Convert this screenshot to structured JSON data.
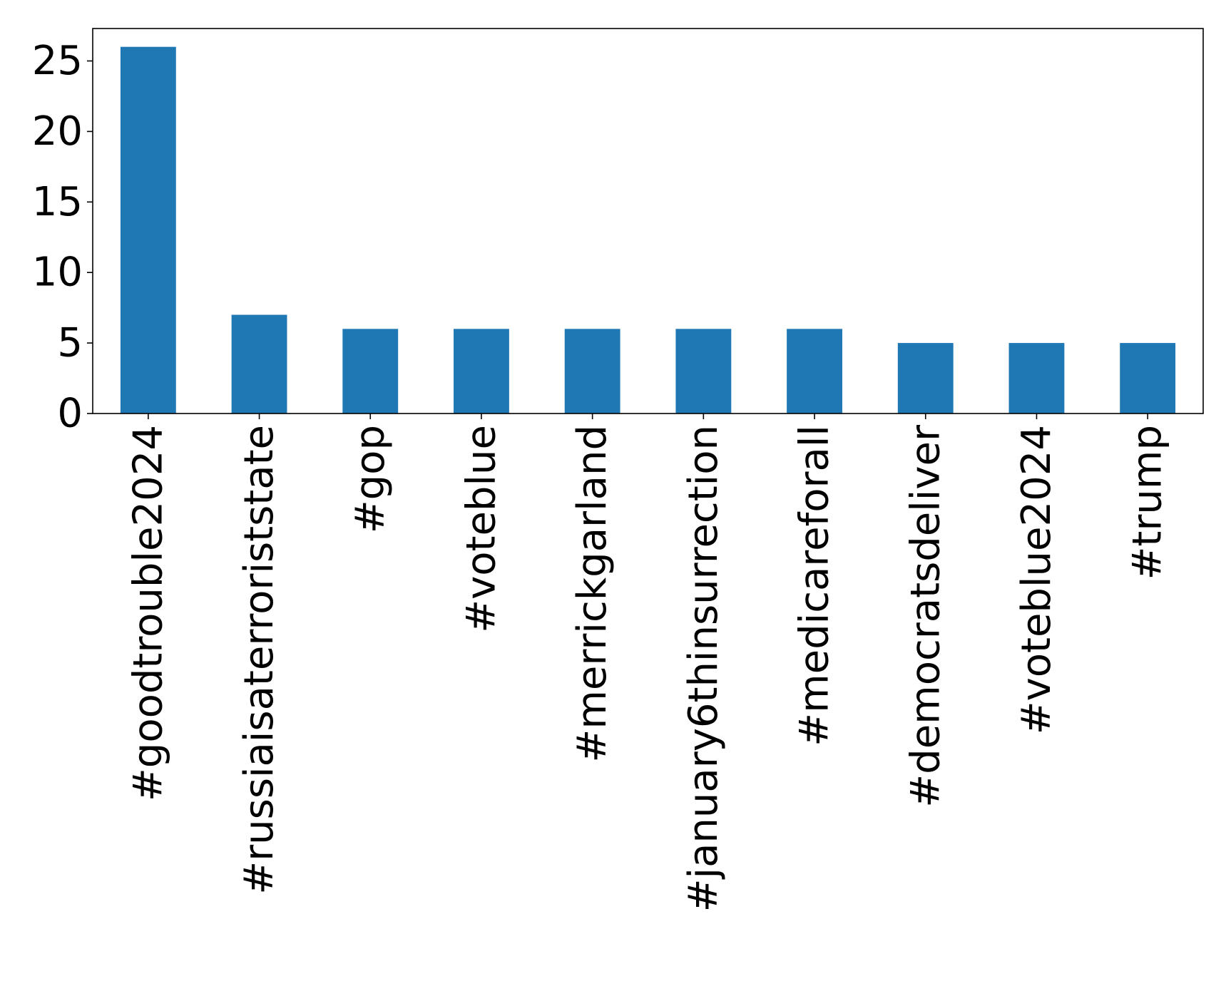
{
  "chart_data": {
    "type": "bar",
    "title": "",
    "xlabel": "",
    "ylabel": "",
    "categories": [
      "#goodtrouble2024",
      "#russiaisaterroriststate",
      "#gop",
      "#voteblue",
      "#merrickgarland",
      "#january6thinsurrection",
      "#medicareforall",
      "#democratsdeliver",
      "#voteblue2024",
      "#trump"
    ],
    "values": [
      26,
      7,
      6,
      6,
      6,
      6,
      6,
      5,
      5,
      5
    ],
    "ylim": [
      0,
      27.3
    ],
    "yticks": [
      0,
      5,
      10,
      15,
      20,
      25
    ],
    "grid": false,
    "legend": "none",
    "bar_color": "#1f77b4"
  }
}
